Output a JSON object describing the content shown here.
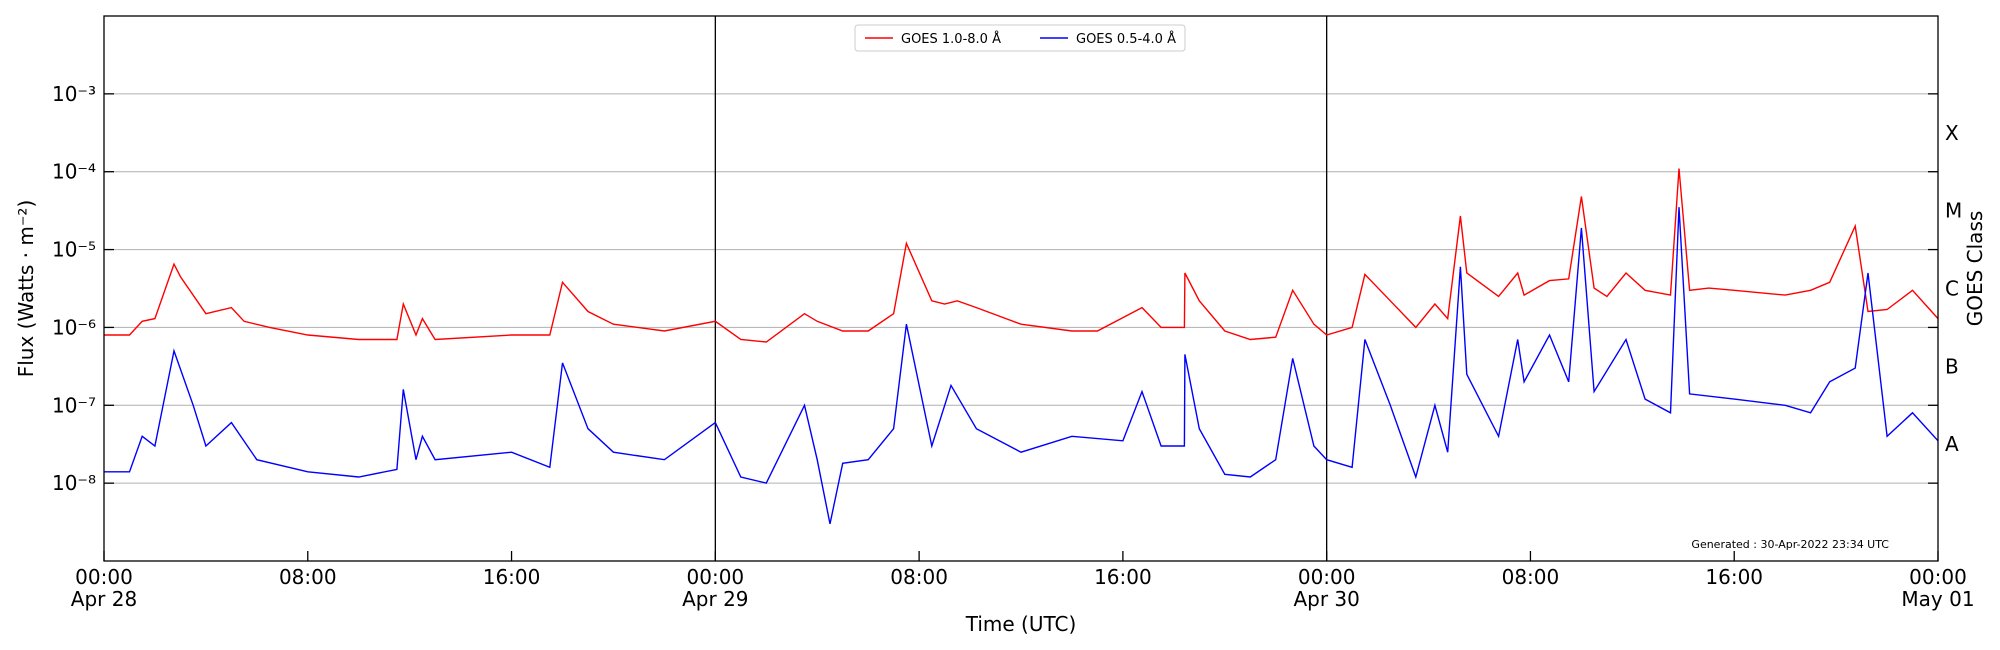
{
  "chart_data": {
    "type": "line",
    "xlabel": "Time (UTC)",
    "ylabel": "Flux (Watts · m⁻²)",
    "y2label": "GOES Class",
    "yscale": "log",
    "ylim": [
      1e-09,
      0.01
    ],
    "xlim": [
      "2022-04-28 00:00",
      "2022-05-01 00:00"
    ],
    "grid": "horizontal at decades",
    "legend_position": "top-center",
    "ytick_labels": [
      "10⁻⁸",
      "10⁻⁷",
      "10⁻⁶",
      "10⁻⁵",
      "10⁻⁴",
      "10⁻³"
    ],
    "xtick_labels": [
      {
        "time": "00:00",
        "date": "Apr 28"
      },
      {
        "time": "08:00",
        "date": ""
      },
      {
        "time": "16:00",
        "date": ""
      },
      {
        "time": "00:00",
        "date": "Apr 29"
      },
      {
        "time": "08:00",
        "date": ""
      },
      {
        "time": "16:00",
        "date": ""
      },
      {
        "time": "00:00",
        "date": "Apr 30"
      },
      {
        "time": "08:00",
        "date": ""
      },
      {
        "time": "16:00",
        "date": ""
      },
      {
        "time": "00:00",
        "date": "May 01"
      }
    ],
    "goes_class_labels": [
      "X",
      "M",
      "C",
      "B",
      "A"
    ],
    "day_boundaries": [
      "2022-04-29 00:00",
      "2022-04-30 00:00"
    ],
    "annotation": "Generated : 30-Apr-2022 23:34 UTC",
    "series": [
      {
        "name": "GOES 1.0-8.0 Å",
        "color": "#ff0000",
        "x": [
          "2022-04-28 00:00",
          "2022-04-28 01:00",
          "2022-04-28 01:30",
          "2022-04-28 02:00",
          "2022-04-28 02:45",
          "2022-04-28 03:00",
          "2022-04-28 04:00",
          "2022-04-28 05:00",
          "2022-04-28 05:30",
          "2022-04-28 06:30",
          "2022-04-28 08:00",
          "2022-04-28 10:00",
          "2022-04-28 11:30",
          "2022-04-28 11:45",
          "2022-04-28 12:15",
          "2022-04-28 12:30",
          "2022-04-28 13:00",
          "2022-04-28 16:00",
          "2022-04-28 17:30",
          "2022-04-28 18:00",
          "2022-04-28 19:00",
          "2022-04-28 20:00",
          "2022-04-28 22:00",
          "2022-04-29 00:00",
          "2022-04-29 01:00",
          "2022-04-29 02:00",
          "2022-04-29 03:30",
          "2022-04-29 04:00",
          "2022-04-29 05:00",
          "2022-04-29 06:00",
          "2022-04-29 07:00",
          "2022-04-29 07:30",
          "2022-04-29 08:30",
          "2022-04-29 09:00",
          "2022-04-29 09:30",
          "2022-04-29 10:15",
          "2022-04-29 12:00",
          "2022-04-29 14:00",
          "2022-04-29 15:00",
          "2022-04-29 16:45",
          "2022-04-29 17:30",
          "2022-04-29 18:25",
          "2022-04-29 18:26",
          "2022-04-29 19:00",
          "2022-04-29 20:00",
          "2022-04-29 21:00",
          "2022-04-29 22:00",
          "2022-04-29 22:40",
          "2022-04-29 23:30",
          "2022-04-30 00:00",
          "2022-04-30 01:00",
          "2022-04-30 01:30",
          "2022-04-30 02:30",
          "2022-04-30 03:30",
          "2022-04-30 04:15",
          "2022-04-30 04:45",
          "2022-04-30 05:15",
          "2022-04-30 05:30",
          "2022-04-30 06:45",
          "2022-04-30 07:30",
          "2022-04-30 07:45",
          "2022-04-30 08:45",
          "2022-04-30 09:30",
          "2022-04-30 10:00",
          "2022-04-30 10:30",
          "2022-04-30 11:00",
          "2022-04-30 11:45",
          "2022-04-30 12:30",
          "2022-04-30 13:30",
          "2022-04-30 13:50",
          "2022-04-30 14:15",
          "2022-04-30 15:00",
          "2022-04-30 16:00",
          "2022-04-30 18:00",
          "2022-04-30 19:00",
          "2022-04-30 19:45",
          "2022-04-30 20:45",
          "2022-04-30 21:15",
          "2022-04-30 22:00",
          "2022-04-30 23:00",
          "2022-05-01 00:00"
        ],
        "y": [
          8e-07,
          8e-07,
          1.2e-06,
          1.3e-06,
          6.5e-06,
          4.5e-06,
          1.5e-06,
          1.8e-06,
          1.2e-06,
          1e-06,
          8e-07,
          7e-07,
          7e-07,
          2e-06,
          8e-07,
          1.3e-06,
          7e-07,
          8e-07,
          8e-07,
          3.8e-06,
          1.6e-06,
          1.1e-06,
          9e-07,
          1.2e-06,
          7e-07,
          6.5e-07,
          1.5e-06,
          1.2e-06,
          9e-07,
          9e-07,
          1.5e-06,
          1.2e-05,
          2.2e-06,
          2e-06,
          2.2e-06,
          1.8e-06,
          1.1e-06,
          9e-07,
          9e-07,
          1.8e-06,
          1e-06,
          1e-06,
          5e-06,
          2.2e-06,
          9e-07,
          7e-07,
          7.5e-07,
          3e-06,
          1.1e-06,
          8e-07,
          1e-06,
          4.8e-06,
          2.2e-06,
          1e-06,
          2e-06,
          1.3e-06,
          2.7e-05,
          5e-06,
          2.5e-06,
          5e-06,
          2.6e-06,
          4e-06,
          4.2e-06,
          4.8e-05,
          3.2e-06,
          2.5e-06,
          5e-06,
          3e-06,
          2.6e-06,
          0.00011,
          3e-06,
          3.2e-06,
          3e-06,
          2.6e-06,
          3e-06,
          3.8e-06,
          2e-05,
          1.6e-06,
          1.7e-06,
          3e-06,
          1.3e-06
        ]
      },
      {
        "name": "GOES 0.5-4.0 Å",
        "color": "#0000ff",
        "x": [
          "2022-04-28 00:00",
          "2022-04-28 01:00",
          "2022-04-28 01:30",
          "2022-04-28 02:00",
          "2022-04-28 02:45",
          "2022-04-28 03:30",
          "2022-04-28 04:00",
          "2022-04-28 05:00",
          "2022-04-28 06:00",
          "2022-04-28 08:00",
          "2022-04-28 10:00",
          "2022-04-28 11:30",
          "2022-04-28 11:45",
          "2022-04-28 12:15",
          "2022-04-28 12:30",
          "2022-04-28 13:00",
          "2022-04-28 16:00",
          "2022-04-28 17:30",
          "2022-04-28 18:00",
          "2022-04-28 19:00",
          "2022-04-28 20:00",
          "2022-04-28 22:00",
          "2022-04-29 00:00",
          "2022-04-29 01:00",
          "2022-04-29 02:00",
          "2022-04-29 03:30",
          "2022-04-29 04:00",
          "2022-04-29 04:30",
          "2022-04-29 05:00",
          "2022-04-29 06:00",
          "2022-04-29 07:00",
          "2022-04-29 07:30",
          "2022-04-29 08:30",
          "2022-04-29 09:15",
          "2022-04-29 10:15",
          "2022-04-29 12:00",
          "2022-04-29 14:00",
          "2022-04-29 16:00",
          "2022-04-29 16:45",
          "2022-04-29 17:30",
          "2022-04-29 18:25",
          "2022-04-29 18:26",
          "2022-04-29 19:00",
          "2022-04-29 20:00",
          "2022-04-29 21:00",
          "2022-04-29 22:00",
          "2022-04-29 22:40",
          "2022-04-29 23:30",
          "2022-04-30 00:00",
          "2022-04-30 01:00",
          "2022-04-30 01:30",
          "2022-04-30 02:30",
          "2022-04-30 03:30",
          "2022-04-30 04:15",
          "2022-04-30 04:45",
          "2022-04-30 05:15",
          "2022-04-30 05:30",
          "2022-04-30 06:45",
          "2022-04-30 07:30",
          "2022-04-30 07:45",
          "2022-04-30 08:45",
          "2022-04-30 09:30",
          "2022-04-30 10:00",
          "2022-04-30 10:30",
          "2022-04-30 11:45",
          "2022-04-30 12:30",
          "2022-04-30 13:30",
          "2022-04-30 13:50",
          "2022-04-30 14:15",
          "2022-04-30 16:00",
          "2022-04-30 18:00",
          "2022-04-30 19:00",
          "2022-04-30 19:45",
          "2022-04-30 20:45",
          "2022-04-30 21:15",
          "2022-04-30 22:00",
          "2022-04-30 23:00",
          "2022-05-01 00:00"
        ],
        "y": [
          1.4e-08,
          1.4e-08,
          4e-08,
          3e-08,
          5e-07,
          1e-07,
          3e-08,
          6e-08,
          2e-08,
          1.4e-08,
          1.2e-08,
          1.5e-08,
          1.6e-07,
          2e-08,
          4e-08,
          2e-08,
          2.5e-08,
          1.6e-08,
          3.5e-07,
          5e-08,
          2.5e-08,
          2e-08,
          6e-08,
          1.2e-08,
          1e-08,
          1e-07,
          2e-08,
          3e-09,
          1.8e-08,
          2e-08,
          5e-08,
          1.1e-06,
          3e-08,
          1.8e-07,
          5e-08,
          2.5e-08,
          4e-08,
          3.5e-08,
          1.5e-07,
          3e-08,
          3e-08,
          4.5e-07,
          5e-08,
          1.3e-08,
          1.2e-08,
          2e-08,
          4e-07,
          3e-08,
          2e-08,
          1.6e-08,
          7e-07,
          1e-07,
          1.2e-08,
          1e-07,
          2.5e-08,
          6e-06,
          2.5e-07,
          4e-08,
          7e-07,
          2e-07,
          8e-07,
          2e-07,
          1.9e-05,
          1.5e-07,
          7e-07,
          1.2e-07,
          8e-08,
          3.5e-05,
          1.4e-07,
          1.2e-07,
          1e-07,
          8e-08,
          2e-07,
          3e-07,
          5e-06,
          4e-08,
          8e-08,
          3.5e-08
        ]
      }
    ]
  }
}
